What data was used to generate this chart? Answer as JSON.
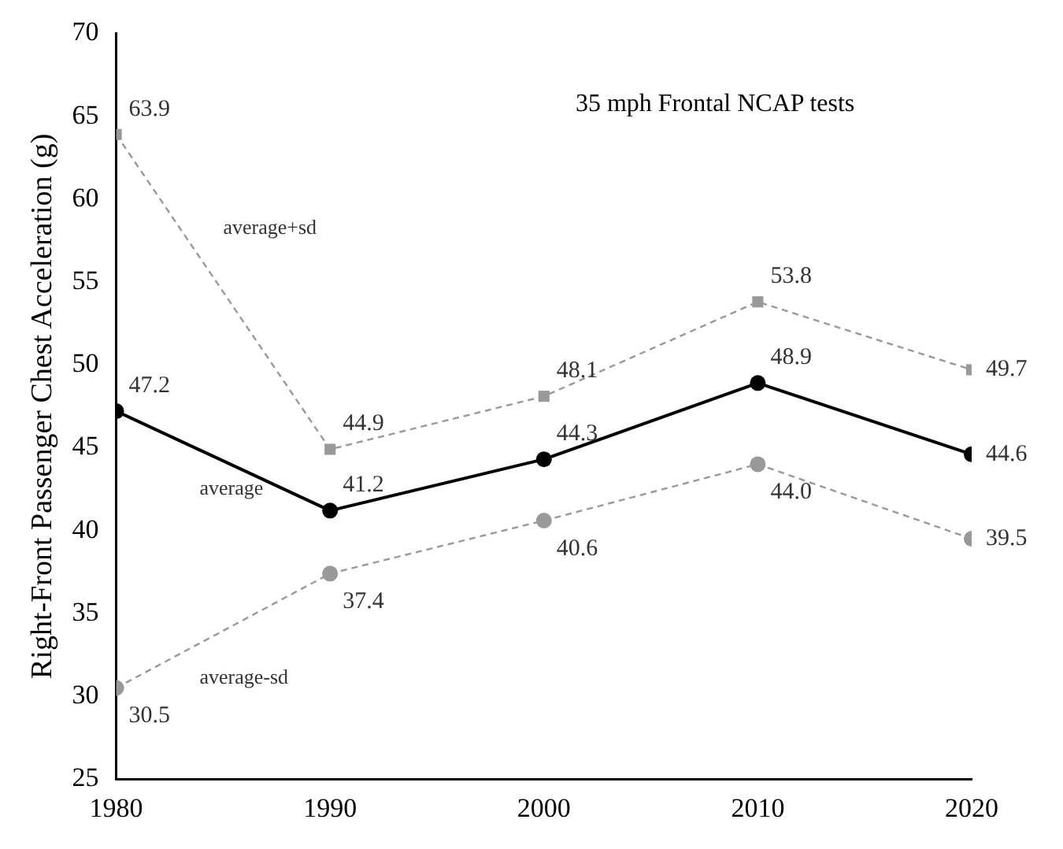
{
  "chart_data": {
    "type": "line",
    "title": "35 mph Frontal NCAP tests",
    "ylabel": "Right-Front Passenger Chest Acceleration (g)",
    "x": [
      1980,
      1990,
      2000,
      2010,
      2020
    ],
    "xlim": [
      1980,
      2020
    ],
    "xticks": [
      1980,
      1990,
      2000,
      2010,
      2020
    ],
    "ylim": [
      25,
      70
    ],
    "yticks": [
      25,
      30,
      35,
      40,
      45,
      50,
      55,
      60,
      65,
      70
    ],
    "grid": false,
    "legend": false,
    "series": [
      {
        "name": "average+sd",
        "color": "#999999",
        "marker": "square",
        "line_style": "dashed",
        "values": [
          63.9,
          44.9,
          48.1,
          53.8,
          49.7
        ],
        "value_labels": [
          "63.9",
          "44.9",
          "48.1",
          "53.8",
          "49.7"
        ]
      },
      {
        "name": "average",
        "color": "#000000",
        "marker": "circle",
        "line_style": "solid",
        "values": [
          47.2,
          41.2,
          44.3,
          48.9,
          44.6
        ],
        "value_labels": [
          "47.2",
          "41.2",
          "44.3",
          "48.9",
          "44.6"
        ]
      },
      {
        "name": "average-sd",
        "color": "#999999",
        "marker": "circle",
        "line_style": "dashed",
        "values": [
          30.5,
          37.4,
          40.6,
          44.0,
          39.5
        ],
        "value_labels": [
          "30.5",
          "37.4",
          "40.6",
          "44.0",
          "39.5"
        ]
      }
    ]
  }
}
